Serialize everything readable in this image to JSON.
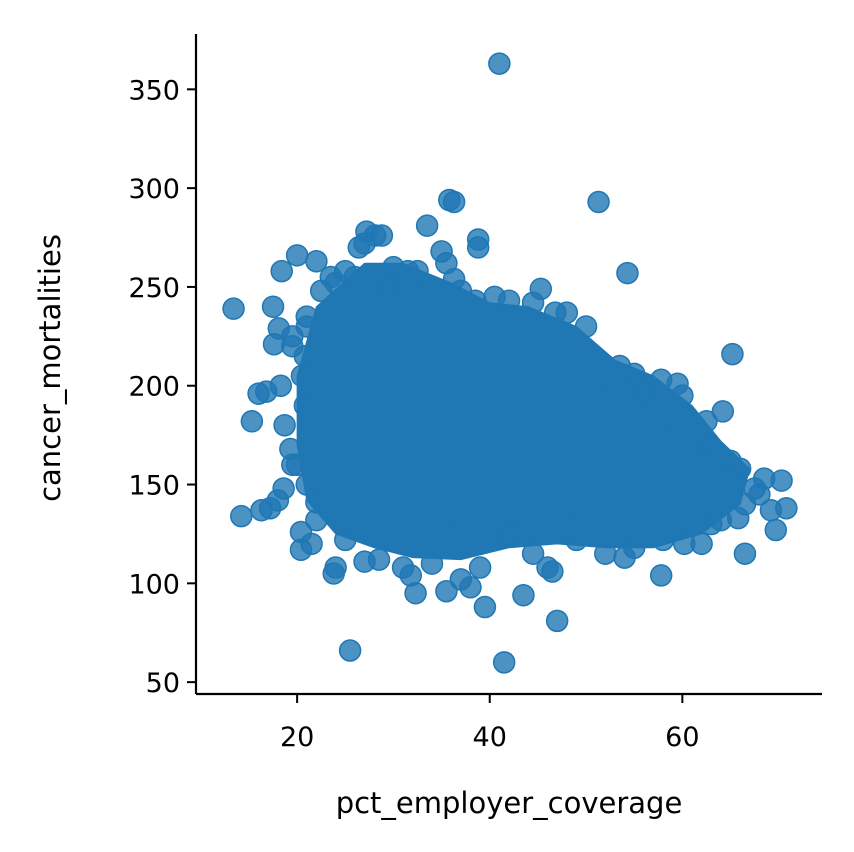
{
  "chart_data": {
    "type": "scatter",
    "title": "",
    "xlabel": "pct_employer_coverage",
    "ylabel": "cancer_mortalities",
    "xlim": [
      9.5,
      74.5
    ],
    "ylim": [
      44,
      378
    ],
    "xticks": [
      20,
      40,
      60
    ],
    "yticks": [
      50,
      100,
      150,
      200,
      250,
      300,
      350
    ],
    "grid": false,
    "legend": "none",
    "color": "#1f77b4",
    "dense_region": {
      "note": "overlapping points form a solid mass",
      "polygon": [
        [
          22,
          240
        ],
        [
          27,
          262
        ],
        [
          31,
          262
        ],
        [
          36,
          252
        ],
        [
          40,
          242
        ],
        [
          44,
          240
        ],
        [
          49,
          230
        ],
        [
          53,
          213
        ],
        [
          57,
          205
        ],
        [
          61,
          190
        ],
        [
          64,
          172
        ],
        [
          67,
          158
        ],
        [
          66,
          140
        ],
        [
          62,
          125
        ],
        [
          57,
          118
        ],
        [
          52,
          118
        ],
        [
          47,
          120
        ],
        [
          42,
          118
        ],
        [
          37,
          112
        ],
        [
          32,
          113
        ],
        [
          28,
          118
        ],
        [
          24,
          125
        ],
        [
          21,
          142
        ],
        [
          20,
          170
        ],
        [
          20,
          205
        ]
      ]
    },
    "points": [
      [
        41.0,
        363
      ],
      [
        35.8,
        294
      ],
      [
        36.3,
        293
      ],
      [
        51.3,
        293
      ],
      [
        33.5,
        281
      ],
      [
        38.8,
        274
      ],
      [
        38.8,
        270
      ],
      [
        35.0,
        268
      ],
      [
        20.0,
        266
      ],
      [
        27.2,
        278
      ],
      [
        28.1,
        276
      ],
      [
        28.8,
        276
      ],
      [
        27.0,
        272
      ],
      [
        26.4,
        270
      ],
      [
        22.0,
        263
      ],
      [
        18.4,
        258
      ],
      [
        54.3,
        257
      ],
      [
        25.0,
        258
      ],
      [
        23.5,
        255
      ],
      [
        30.0,
        260
      ],
      [
        31.5,
        258
      ],
      [
        32.5,
        258
      ],
      [
        35.5,
        262
      ],
      [
        36.3,
        254
      ],
      [
        45.3,
        249
      ],
      [
        13.4,
        239
      ],
      [
        17.5,
        240
      ],
      [
        18.1,
        229
      ],
      [
        19.5,
        225
      ],
      [
        17.6,
        221
      ],
      [
        65.2,
        216
      ],
      [
        19.5,
        220
      ],
      [
        20.8,
        215
      ],
      [
        21.0,
        235
      ],
      [
        18.3,
        200
      ],
      [
        16.8,
        197
      ],
      [
        16.0,
        196
      ],
      [
        15.3,
        182
      ],
      [
        18.7,
        180
      ],
      [
        57.8,
        203
      ],
      [
        59.5,
        201
      ],
      [
        60.0,
        195
      ],
      [
        64.2,
        187
      ],
      [
        55.0,
        206
      ],
      [
        53.5,
        210
      ],
      [
        19.3,
        168
      ],
      [
        19.5,
        160
      ],
      [
        20.0,
        160
      ],
      [
        18.6,
        148
      ],
      [
        18.0,
        142
      ],
      [
        17.2,
        138
      ],
      [
        16.3,
        137
      ],
      [
        14.2,
        134
      ],
      [
        22.0,
        141
      ],
      [
        20.4,
        126
      ],
      [
        20.4,
        117
      ],
      [
        22.0,
        132
      ],
      [
        24.0,
        108
      ],
      [
        23.8,
        105
      ],
      [
        27.0,
        111
      ],
      [
        25.5,
        66
      ],
      [
        31.0,
        108
      ],
      [
        31.8,
        104
      ],
      [
        32.3,
        95
      ],
      [
        35.5,
        96
      ],
      [
        37.0,
        102
      ],
      [
        38.0,
        98
      ],
      [
        39.5,
        88
      ],
      [
        41.5,
        60
      ],
      [
        43.5,
        94
      ],
      [
        46.0,
        108
      ],
      [
        46.5,
        106
      ],
      [
        47.0,
        81
      ],
      [
        52.0,
        115
      ],
      [
        54.0,
        113
      ],
      [
        57.8,
        104
      ],
      [
        60.2,
        120
      ],
      [
        62.0,
        120
      ],
      [
        64.0,
        132
      ],
      [
        65.8,
        133
      ],
      [
        66.5,
        115
      ],
      [
        68.0,
        145
      ],
      [
        69.2,
        137
      ],
      [
        69.7,
        127
      ],
      [
        70.3,
        152
      ],
      [
        70.8,
        138
      ],
      [
        68.5,
        153
      ],
      [
        67.5,
        148
      ],
      [
        66.0,
        158
      ],
      [
        65.0,
        162
      ],
      [
        63.8,
        165
      ],
      [
        63.0,
        169
      ],
      [
        62.0,
        171
      ],
      [
        62.5,
        182
      ],
      [
        61.5,
        176
      ],
      [
        58.5,
        185
      ],
      [
        56.5,
        188
      ],
      [
        52.0,
        194
      ],
      [
        50.0,
        230
      ],
      [
        48.0,
        237
      ],
      [
        46.8,
        237
      ],
      [
        44.5,
        242
      ],
      [
        42.0,
        243
      ],
      [
        40.5,
        245
      ],
      [
        38.5,
        243
      ],
      [
        37.0,
        248
      ],
      [
        33.0,
        245
      ],
      [
        29.5,
        250
      ],
      [
        26.0,
        255
      ],
      [
        24.0,
        252
      ],
      [
        22.5,
        248
      ],
      [
        21.0,
        230
      ],
      [
        21.5,
        120
      ],
      [
        25.0,
        122
      ],
      [
        28.5,
        112
      ],
      [
        34.0,
        110
      ],
      [
        39.0,
        108
      ],
      [
        44.5,
        115
      ],
      [
        49.0,
        122
      ],
      [
        55.0,
        118
      ],
      [
        58.0,
        122
      ],
      [
        63.0,
        130
      ],
      [
        66.5,
        140
      ],
      [
        20.8,
        190
      ],
      [
        20.5,
        205
      ],
      [
        21.0,
        150
      ],
      [
        53.0,
        200
      ],
      [
        56.0,
        196
      ],
      [
        59.0,
        190
      ],
      [
        60.5,
        172
      ],
      [
        44.0,
        128
      ],
      [
        30.0,
        128
      ],
      [
        36.0,
        124
      ],
      [
        42.0,
        125
      ],
      [
        48.5,
        128
      ]
    ]
  }
}
